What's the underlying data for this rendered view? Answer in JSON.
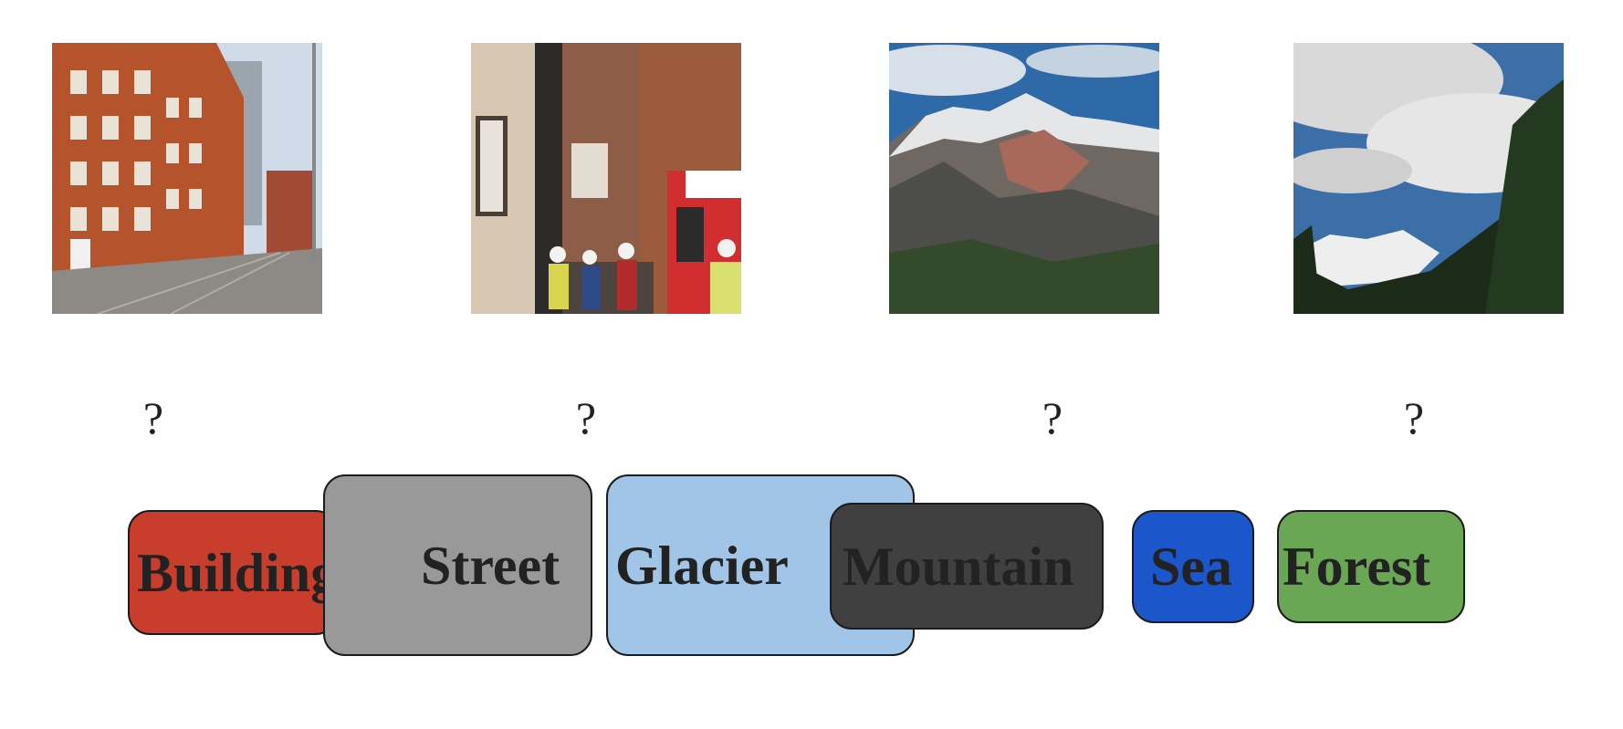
{
  "photos": [
    {
      "name": "buildings-photo"
    },
    {
      "name": "street-photo"
    },
    {
      "name": "mountain-photo"
    },
    {
      "name": "forest-photo"
    }
  ],
  "placeholders": [
    "?",
    "?",
    "?",
    "?"
  ],
  "labels": {
    "buildings": {
      "text": "Buildings",
      "color": "#c83d2b"
    },
    "street": {
      "text": "Street",
      "color": "#999999"
    },
    "glacier": {
      "text": "Glacier",
      "color": "#a1c5e6"
    },
    "mountain": {
      "text": "Mountain",
      "color": "#404040"
    },
    "sea": {
      "text": "Sea",
      "color": "#1c56cb"
    },
    "forest": {
      "text": "Forest",
      "color": "#6aa754"
    }
  }
}
